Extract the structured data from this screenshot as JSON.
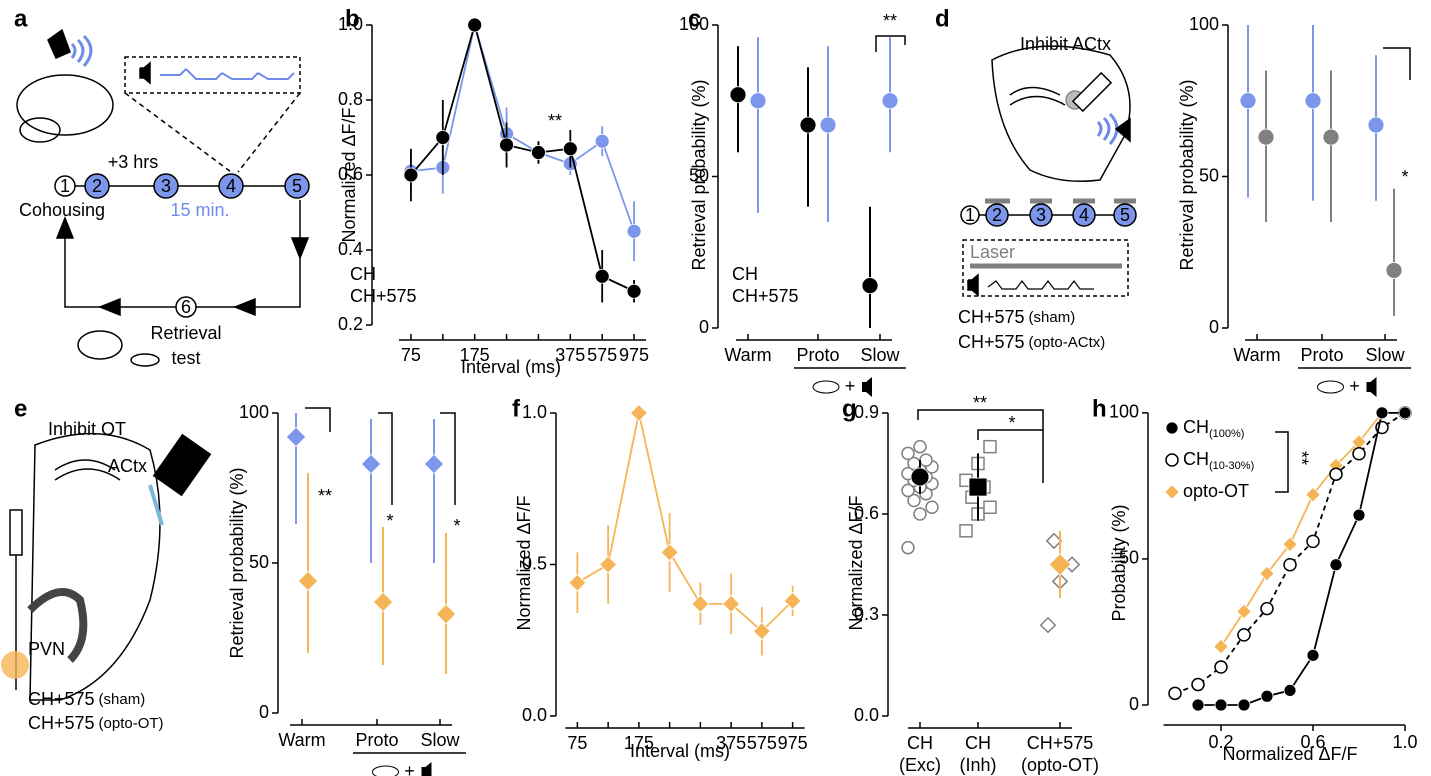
{
  "panel_labels": [
    "a",
    "b",
    "c",
    "d",
    "e",
    "f",
    "g",
    "h"
  ],
  "schematic_a": {
    "nodes": [
      "1",
      "2",
      "3",
      "4",
      "5",
      "6"
    ],
    "delay": "+3 hrs",
    "interval": "15 min.",
    "start": "Cohousing",
    "end": [
      "Retrieval",
      "test"
    ]
  },
  "schematic_d": {
    "title": "Inhibit ACtx",
    "nodes": [
      "1",
      "2",
      "3",
      "4",
      "5"
    ],
    "laser": "Laser"
  },
  "schematic_e": {
    "title": "Inhibit OT",
    "regions": [
      "ACtx",
      "PVN"
    ]
  },
  "chart_data": [
    {
      "type": "line",
      "categories": [
        "75",
        null,
        "175",
        null,
        null,
        "375",
        "575",
        "975"
      ],
      "xlabel": "Interval (ms)",
      "ylabel": "Normalized ΔF/F",
      "ylim": [
        0.2,
        1.0
      ],
      "yticks": [
        0.2,
        0.4,
        0.6,
        0.8,
        {
          "value": 1,
          "label": "1.0"
        }
      ],
      "series": [
        {
          "name": "CH",
          "color": "#000000",
          "marker": "circle",
          "values": [
            0.6,
            0.7,
            1.0,
            0.68,
            0.66,
            0.67,
            0.33,
            0.29
          ],
          "errors": [
            0.07,
            0.1,
            0,
            0.06,
            0.03,
            0.05,
            0.07,
            0.03
          ]
        },
        {
          "name": "CH+575",
          "color": "#7b96ea",
          "marker": "circle",
          "values": [
            0.61,
            0.62,
            1.0,
            0.71,
            0.66,
            0.63,
            0.69,
            0.45
          ],
          "errors": [
            0.05,
            0.07,
            0,
            0.07,
            0.03,
            0.03,
            0.04,
            0.08
          ]
        }
      ],
      "annotations": [
        "**"
      ]
    },
    {
      "type": "dot",
      "categories": [
        "Warm",
        "Proto",
        "Slow"
      ],
      "ylabel": "Retrieval probability (%)",
      "ylim": [
        0,
        100
      ],
      "yticks": [
        0,
        50,
        100
      ],
      "x_note": "+",
      "series": [
        {
          "name": "CH",
          "color": "#000000",
          "marker": "circle",
          "values": [
            77,
            67,
            14
          ],
          "lower": [
            58,
            40,
            0
          ],
          "upper": [
            93,
            86,
            40
          ]
        },
        {
          "name": "CH+575",
          "color": "#7b96ea",
          "marker": "circle",
          "values": [
            75,
            67,
            75
          ],
          "lower": [
            38,
            35,
            58
          ],
          "upper": [
            96,
            93,
            96
          ]
        }
      ],
      "annotations": [
        "**"
      ]
    },
    {
      "type": "dot",
      "categories": [
        "Warm",
        "Proto",
        "Slow"
      ],
      "ylabel": "Retrieval probability (%)",
      "ylim": [
        0,
        100
      ],
      "yticks": [
        0,
        50,
        100
      ],
      "x_note": "+",
      "series": [
        {
          "name": "CH+575",
          "note": "(sham)",
          "color": "#7b96ea",
          "marker": "circle",
          "values": [
            75,
            75,
            67
          ],
          "lower": [
            43,
            42,
            42
          ],
          "upper": [
            100,
            100,
            90
          ]
        },
        {
          "name": "CH+575",
          "note": "(opto-ACtx)",
          "color": "#808080",
          "marker": "circle",
          "values": [
            63,
            63,
            19
          ],
          "lower": [
            35,
            35,
            4
          ],
          "upper": [
            85,
            85,
            46
          ]
        }
      ],
      "annotations": [
        "*"
      ]
    },
    {
      "type": "dot",
      "categories": [
        "Warm",
        "Proto",
        "Slow"
      ],
      "ylabel": "Retrieval probability (%)",
      "ylim": [
        0,
        100
      ],
      "yticks": [
        0,
        50,
        100
      ],
      "x_note": "+",
      "series": [
        {
          "name": "CH+575",
          "note": "(sham)",
          "color": "#7b96ea",
          "marker": "diamond",
          "values": [
            92,
            83,
            83
          ],
          "lower": [
            63,
            50,
            50
          ],
          "upper": [
            100,
            98,
            98
          ]
        },
        {
          "name": "CH+575",
          "note": "(opto-OT)",
          "color": "#f5b556",
          "marker": "diamond",
          "values": [
            44,
            37,
            33
          ],
          "lower": [
            20,
            16,
            13
          ],
          "upper": [
            80,
            62,
            60
          ]
        }
      ],
      "annotations": [
        "**",
        "*",
        "*"
      ]
    },
    {
      "type": "line",
      "categories": [
        "75",
        null,
        "175",
        null,
        null,
        "375",
        "575",
        "975"
      ],
      "xlabel": "Interval (ms)",
      "ylabel": "Normalized ΔF/F",
      "ylim": [
        0,
        1.0
      ],
      "yticks": [
        {
          "value": 0,
          "label": "0.0"
        },
        0.5,
        {
          "value": 1,
          "label": "1.0"
        }
      ],
      "series": [
        {
          "color": "#f5b556",
          "marker": "diamond",
          "values": [
            0.44,
            0.5,
            1.0,
            0.54,
            0.37,
            0.37,
            0.28,
            0.38
          ],
          "errors": [
            0.1,
            0.13,
            0,
            0.13,
            0.07,
            0.1,
            0.08,
            0.05
          ]
        }
      ]
    },
    {
      "type": "strip",
      "categories": [
        "CH",
        "CH",
        "CH+575"
      ],
      "subcategories": [
        "(Exc)",
        "(Inh)",
        "(opto-OT)"
      ],
      "ylabel": "Normalized ΔF/F",
      "ylim": [
        0,
        0.9
      ],
      "yticks": [
        {
          "value": 0,
          "label": "0.0"
        },
        0.3,
        0.6,
        0.9
      ],
      "point_color": "#808080",
      "groups": [
        {
          "marker": "circle",
          "color": "#000000",
          "points": [
            0.5,
            0.6,
            0.62,
            0.64,
            0.66,
            0.67,
            0.68,
            0.69,
            0.7,
            0.71,
            0.72,
            0.73,
            0.74,
            0.75,
            0.76,
            0.78,
            0.8
          ],
          "mean": 0.71,
          "error": 0.05
        },
        {
          "marker": "square",
          "color": "#000000",
          "points": [
            0.55,
            0.6,
            0.62,
            0.65,
            0.68,
            0.7,
            0.75,
            0.8
          ],
          "mean": 0.68,
          "error": 0.1
        },
        {
          "marker": "diamond",
          "color": "#f5b556",
          "points": [
            0.27,
            0.4,
            0.45,
            0.52
          ],
          "mean": 0.45,
          "error": 0.1
        }
      ],
      "annotations": [
        "**",
        "*"
      ]
    },
    {
      "type": "line",
      "xlabel": "Normalized ΔF/F",
      "ylabel": "Probability (%)",
      "xlim": [
        -0.05,
        1.05
      ],
      "xticks": [
        0.2,
        0.6,
        {
          "value": 1,
          "label": "1.0"
        }
      ],
      "ylim": [
        -4,
        102
      ],
      "yticks": [
        0,
        50,
        100
      ],
      "series": [
        {
          "name": "CH",
          "subscript": "(100%)",
          "color": "#000000",
          "marker": "circle",
          "x": [
            0.1,
            0.2,
            0.3,
            0.4,
            0.5,
            0.6,
            0.7,
            0.8,
            0.9,
            1.0
          ],
          "values": [
            0,
            0,
            0,
            3,
            5,
            17,
            48,
            65,
            100,
            100
          ]
        },
        {
          "name": "CH",
          "subscript": "(10-30%)",
          "color": "#000000",
          "marker": "open-circle",
          "dash": true,
          "x": [
            0.0,
            0.1,
            0.2,
            0.3,
            0.4,
            0.5,
            0.6,
            0.7,
            0.8,
            0.9,
            1.0
          ],
          "values": [
            4,
            7,
            13,
            24,
            33,
            48,
            56,
            79,
            86,
            95,
            100
          ]
        },
        {
          "name": "opto-OT",
          "color": "#f5b556",
          "marker": "diamond",
          "x": [
            0.2,
            0.3,
            0.4,
            0.5,
            0.6,
            0.7,
            0.8,
            0.9,
            1.0
          ],
          "values": [
            20,
            32,
            45,
            55,
            72,
            82,
            90,
            100,
            100
          ]
        }
      ],
      "annotations": [
        "**"
      ]
    }
  ]
}
